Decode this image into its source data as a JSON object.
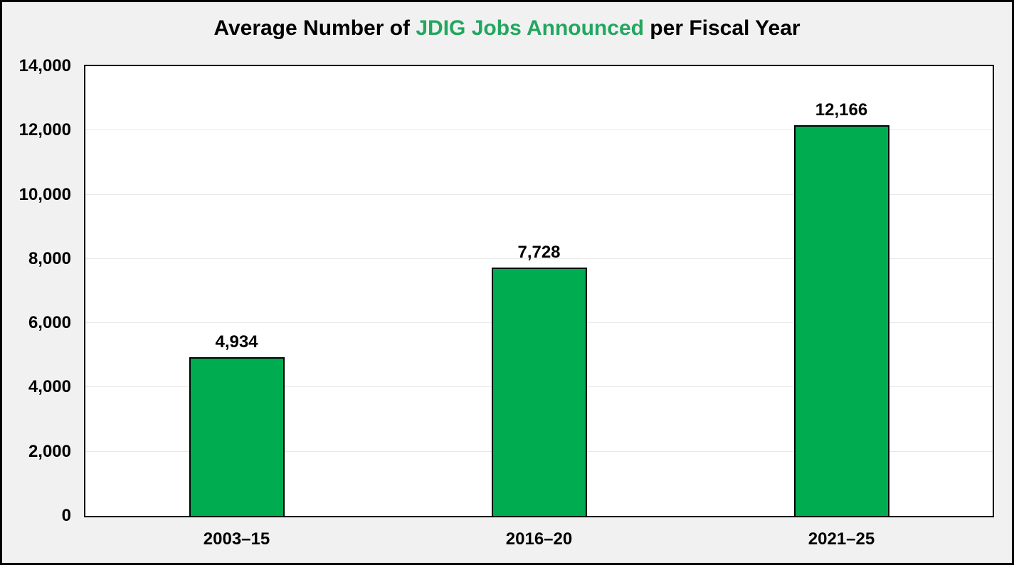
{
  "title": {
    "prefix": "Average Number of ",
    "highlight": "JDIG Jobs Announced",
    "suffix": " per Fiscal Year"
  },
  "colors": {
    "background": "#F1F1F1",
    "plot_background": "#FFFFFF",
    "gridline": "#E7E7E7",
    "bar_fill": "#00AC50",
    "bar_border": "#000000",
    "title_highlight": "#21A75F",
    "text": "#000000",
    "frame": "#000000"
  },
  "chart_data": {
    "type": "bar",
    "title": "Average Number of JDIG Jobs Announced per Fiscal Year",
    "categories": [
      "2003–15",
      "2016–20",
      "2021–25"
    ],
    "values": [
      4934,
      7728,
      12166
    ],
    "value_labels": [
      "4,934",
      "7,728",
      "12,166"
    ],
    "xlabel": "",
    "ylabel": "",
    "ylim": [
      0,
      14000
    ],
    "ytick_interval": 2000,
    "ytick_labels": [
      "0",
      "2,000",
      "4,000",
      "6,000",
      "8,000",
      "10,000",
      "12,000",
      "14,000"
    ],
    "grid": true,
    "legend": false
  }
}
